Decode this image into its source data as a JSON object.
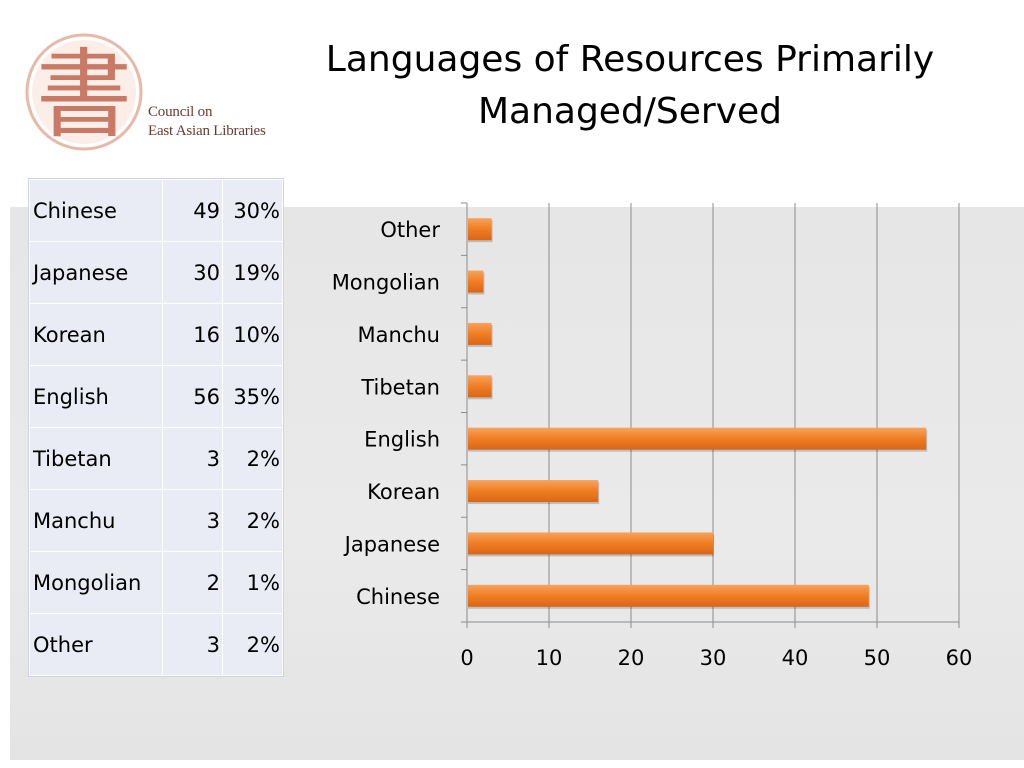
{
  "logo": {
    "name": "Council on East Asian Libraries logo",
    "glyph": "書",
    "line1": "Council on",
    "line2": "East Asian Libraries",
    "color": "#c97a66"
  },
  "header": {
    "title_line1": "Languages of Resources Primarily",
    "title_line2": "Managed/Served"
  },
  "table": {
    "rows": [
      {
        "language": "Chinese",
        "count": "49",
        "percent": "30%"
      },
      {
        "language": "Japanese",
        "count": "30",
        "percent": "19%"
      },
      {
        "language": "Korean",
        "count": "16",
        "percent": "10%"
      },
      {
        "language": "English",
        "count": "56",
        "percent": "35%"
      },
      {
        "language": "Tibetan",
        "count": "3",
        "percent": "2%"
      },
      {
        "language": "Manchu",
        "count": "3",
        "percent": "2%"
      },
      {
        "language": "Mongolian",
        "count": "2",
        "percent": "1%"
      },
      {
        "language": "Other",
        "count": "3",
        "percent": "2%"
      }
    ]
  },
  "chart_data": {
    "type": "bar",
    "orientation": "horizontal",
    "categories": [
      "Chinese",
      "Japanese",
      "Korean",
      "English",
      "Tibetan",
      "Manchu",
      "Mongolian",
      "Other"
    ],
    "values": [
      49,
      30,
      16,
      56,
      3,
      3,
      2,
      3
    ],
    "title": "",
    "xlabel": "",
    "ylabel": "",
    "xlim": [
      0,
      60
    ],
    "xticks": [
      0,
      10,
      20,
      30,
      40,
      50,
      60
    ],
    "grid": true,
    "legend": "none",
    "bar_color": "#f07d22"
  }
}
